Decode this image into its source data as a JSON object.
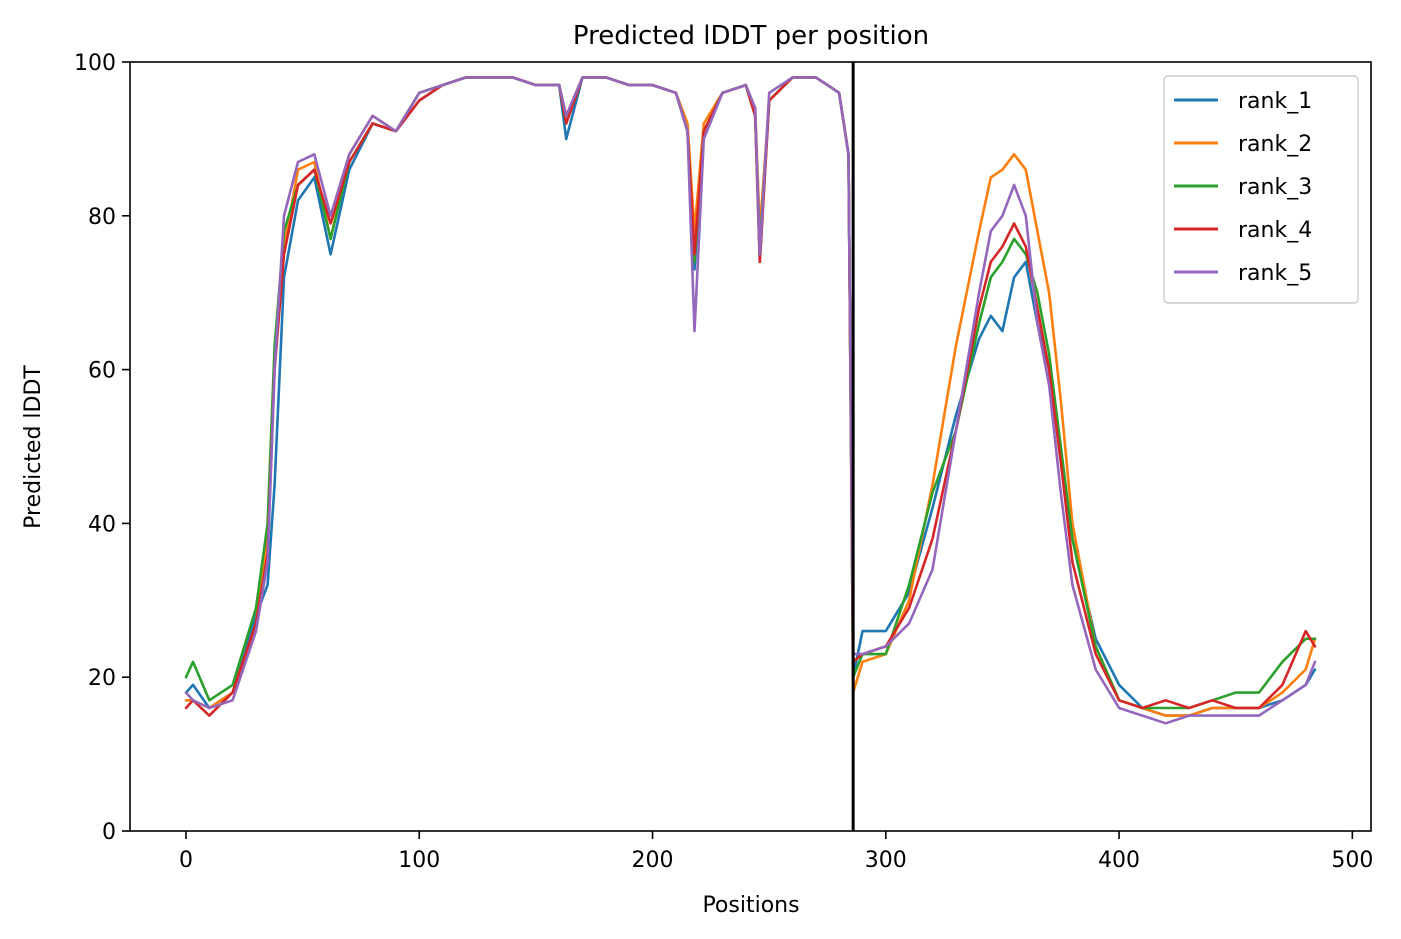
{
  "chart_data": {
    "type": "line",
    "title": "Predicted lDDT per position",
    "xlabel": "Positions",
    "ylabel": "Predicted lDDT",
    "xlim": [
      -24,
      508
    ],
    "ylim": [
      0,
      100
    ],
    "xticks": [
      0,
      100,
      200,
      300,
      400,
      500
    ],
    "yticks": [
      0,
      20,
      40,
      60,
      80,
      100
    ],
    "grid": false,
    "legend_position": "top-right",
    "vline": {
      "x": 286,
      "color": "#000000"
    },
    "x_knots": [
      0,
      3,
      10,
      20,
      30,
      35,
      38,
      42,
      48,
      55,
      62,
      70,
      80,
      90,
      100,
      110,
      120,
      130,
      140,
      150,
      160,
      163,
      170,
      180,
      190,
      200,
      210,
      215,
      218,
      222,
      230,
      240,
      244,
      246,
      250,
      260,
      270,
      275,
      280,
      284,
      286,
      290,
      300,
      310,
      320,
      330,
      340,
      345,
      350,
      355,
      360,
      365,
      370,
      375,
      380,
      390,
      400,
      410,
      420,
      430,
      440,
      450,
      460,
      470,
      480,
      484
    ],
    "series": [
      {
        "name": "rank_1",
        "color": "#1f77b4",
        "values": [
          18,
          19,
          16,
          18,
          28,
          32,
          45,
          72,
          82,
          85,
          75,
          86,
          92,
          91,
          95,
          97,
          98,
          98,
          98,
          97,
          97,
          90,
          98,
          98,
          97,
          97,
          96,
          91,
          73,
          91,
          96,
          97,
          93,
          74,
          95,
          98,
          98,
          97,
          96,
          88,
          20,
          26,
          26,
          31,
          42,
          54,
          64,
          67,
          65,
          72,
          74,
          66,
          60,
          48,
          38,
          25,
          19,
          16,
          15,
          15,
          16,
          16,
          16,
          17,
          19,
          21
        ]
      },
      {
        "name": "rank_2",
        "color": "#ff7f0e",
        "values": [
          17,
          17,
          16,
          18,
          27,
          38,
          62,
          76,
          86,
          87,
          77,
          88,
          93,
          91,
          96,
          97,
          98,
          98,
          98,
          97,
          97,
          93,
          98,
          98,
          97,
          97,
          96,
          92,
          78,
          92,
          96,
          97,
          94,
          78,
          95,
          98,
          98,
          97,
          96,
          88,
          18,
          22,
          23,
          30,
          45,
          63,
          78,
          85,
          86,
          88,
          86,
          78,
          70,
          56,
          40,
          24,
          17,
          16,
          15,
          15,
          16,
          16,
          16,
          18,
          21,
          25
        ]
      },
      {
        "name": "rank_3",
        "color": "#2ca02c",
        "values": [
          20,
          22,
          17,
          19,
          29,
          40,
          63,
          78,
          84,
          86,
          77,
          87,
          92,
          91,
          96,
          97,
          98,
          98,
          98,
          97,
          97,
          92,
          98,
          98,
          97,
          97,
          96,
          91,
          74,
          91,
          96,
          97,
          93,
          76,
          95,
          98,
          98,
          97,
          96,
          88,
          20,
          23,
          23,
          32,
          44,
          52,
          66,
          72,
          74,
          77,
          75,
          70,
          62,
          50,
          38,
          24,
          17,
          16,
          16,
          16,
          17,
          18,
          18,
          22,
          25,
          25
        ]
      },
      {
        "name": "rank_4",
        "color": "#d62728",
        "values": [
          16,
          17,
          15,
          18,
          27,
          36,
          60,
          75,
          84,
          86,
          79,
          87,
          92,
          91,
          95,
          97,
          98,
          98,
          98,
          97,
          97,
          92,
          98,
          98,
          97,
          97,
          96,
          91,
          75,
          91,
          96,
          97,
          93,
          74,
          95,
          98,
          98,
          97,
          96,
          88,
          22,
          23,
          24,
          29,
          38,
          52,
          68,
          74,
          76,
          79,
          76,
          68,
          60,
          48,
          35,
          23,
          17,
          16,
          17,
          16,
          17,
          16,
          16,
          19,
          26,
          24
        ]
      },
      {
        "name": "rank_5",
        "color": "#9467bd",
        "values": [
          18,
          17,
          16,
          17,
          26,
          35,
          60,
          80,
          87,
          88,
          80,
          88,
          93,
          91,
          96,
          97,
          98,
          98,
          98,
          97,
          97,
          93,
          98,
          98,
          97,
          97,
          96,
          91,
          65,
          90,
          96,
          97,
          94,
          75,
          96,
          98,
          98,
          97,
          96,
          88,
          23,
          23,
          24,
          27,
          34,
          52,
          70,
          78,
          80,
          84,
          80,
          66,
          58,
          44,
          32,
          21,
          16,
          15,
          14,
          15,
          15,
          15,
          15,
          17,
          19,
          22
        ]
      }
    ]
  }
}
